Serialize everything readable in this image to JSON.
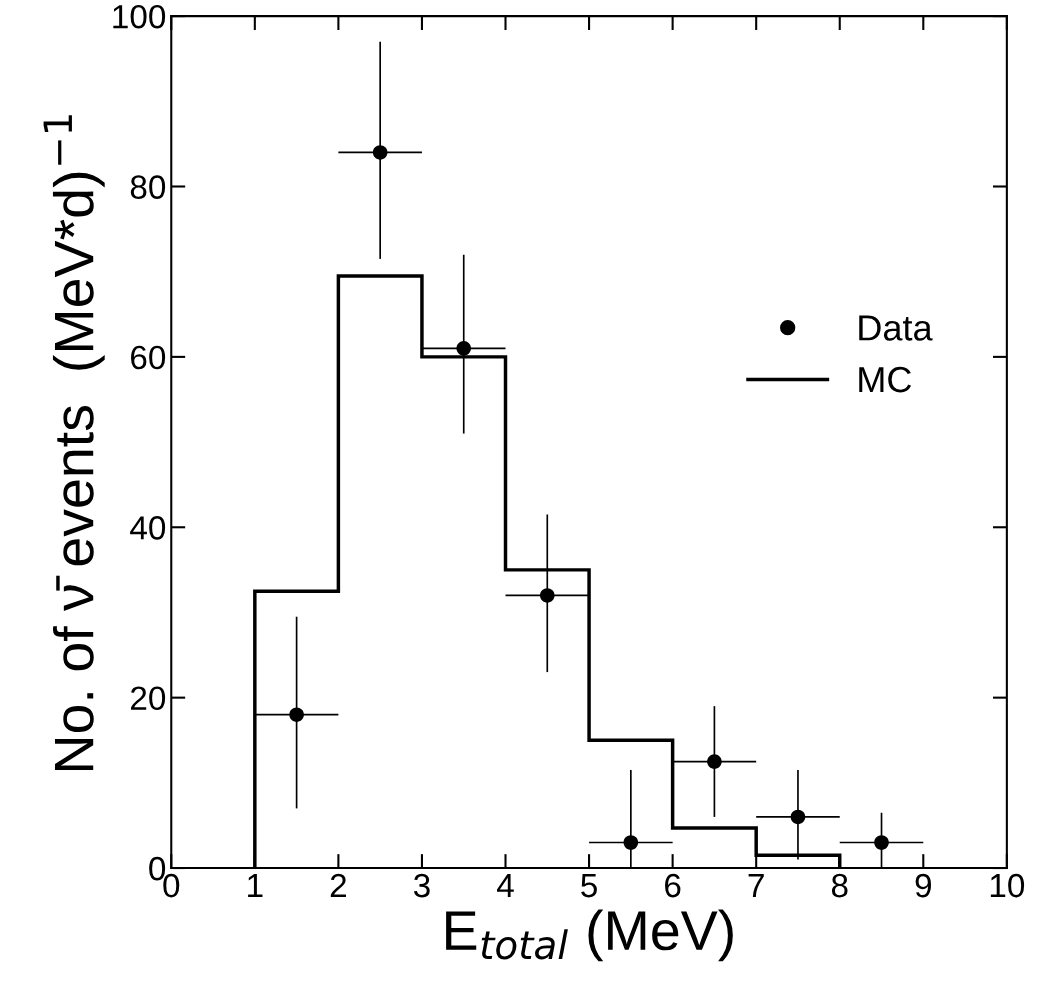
{
  "chart_data": {
    "type": "histogram",
    "xlabel": "E$_{total}$ (MeV)",
    "ylabel": "No. of ν̄ events  (MeV*d)$^{−1}$",
    "series": [
      {
        "name": "Data",
        "type": "scatter",
        "color": "#000000",
        "marker": "circle",
        "x": [
          1.5,
          2.5,
          3.5,
          4.5,
          5.5,
          6.5,
          7.5,
          8.5
        ],
        "values": [
          18,
          84,
          61,
          32,
          3,
          12.5,
          6,
          3
        ],
        "errors": [
          [
            7,
            29.5
          ],
          [
            71.5,
            97
          ],
          [
            51,
            72
          ],
          [
            23,
            41.5
          ],
          [
            0,
            11.5
          ],
          [
            6,
            19
          ],
          [
            1,
            11.5
          ],
          [
            0,
            6.5
          ]
        ],
        "xerrors": [
          0.5,
          0.5,
          0.5,
          0.5,
          0.5,
          0.5,
          0.5,
          0.5
        ]
      },
      {
        "name": "MC",
        "color": "#000000",
        "bins": [
          1,
          2,
          3,
          4,
          5,
          6,
          7,
          8
        ],
        "values": [
          32.5,
          69.5,
          60,
          35,
          15,
          4.7,
          1.5
        ]
      }
    ],
    "xlim": [
      0,
      10
    ],
    "ylim": [
      0,
      100
    ],
    "xticks": [
      0,
      1,
      2,
      3,
      4,
      5,
      6,
      7,
      8,
      9,
      10
    ],
    "yticks": [
      0,
      20,
      40,
      60,
      80,
      100
    ],
    "grid": false,
    "legend": "right"
  }
}
